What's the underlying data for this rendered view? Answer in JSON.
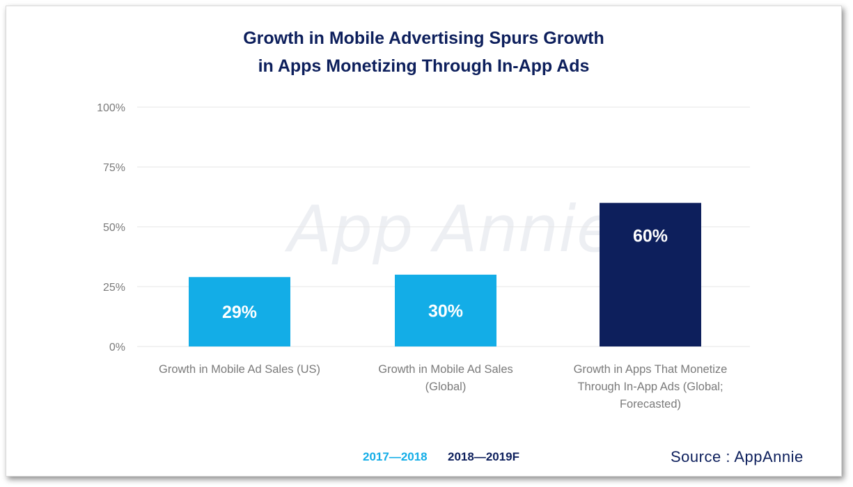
{
  "chart_data": {
    "type": "bar",
    "title_lines": [
      "Growth in Mobile Advertising Spurs Growth",
      "in Apps Monetizing Through In-App Ads"
    ],
    "categories": [
      [
        "Growth in Mobile Ad Sales (US)"
      ],
      [
        "Growth in Mobile Ad Sales",
        "(Global)"
      ],
      [
        "Growth in Apps That Monetize",
        "Through In-App Ads (Global;",
        "Forecasted)"
      ]
    ],
    "values": [
      29,
      30,
      60
    ],
    "data_labels": [
      "29%",
      "30%",
      "60%"
    ],
    "bar_series": [
      "2017—2018",
      "2017—2018",
      "2018—2019F"
    ],
    "ylim": [
      0,
      100
    ],
    "yticks": [
      0,
      25,
      50,
      75,
      100
    ],
    "ytick_labels": [
      "0%",
      "25%",
      "50%",
      "75%",
      "100%"
    ],
    "grid": true,
    "watermark": "App Annie",
    "legend": [
      {
        "name": "2017—2018",
        "color": "#13ade7"
      },
      {
        "name": "2018—2019F",
        "color": "#0d1f5c"
      }
    ],
    "legend_position": "bottom-center",
    "source": "Source : AppAnnie"
  },
  "colors": {
    "series_2017_2018": "#13ade7",
    "series_2018_2019F": "#0d1f5c",
    "grid": "#e6e6e6",
    "axis_text": "#7a7a7a"
  }
}
